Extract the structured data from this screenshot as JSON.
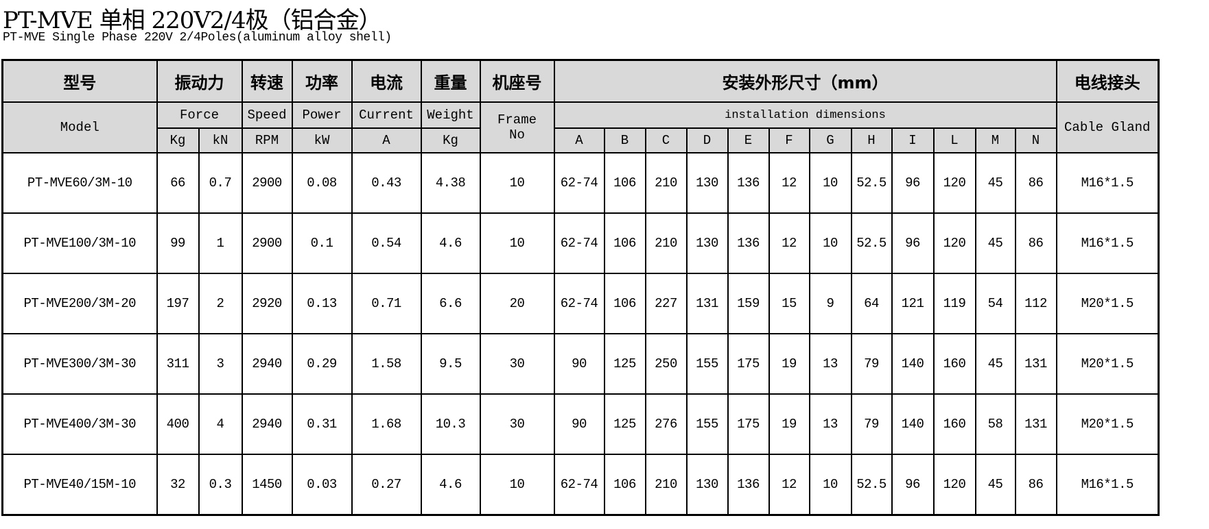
{
  "title": "PT-MVE 单相 220V2/4极（铝合金）",
  "subtitle": "PT-MVE Single Phase 220V 2/4Poles(aluminum alloy shell)",
  "colors": {
    "header_bg": "#d9d9d9",
    "border": "#000000"
  },
  "header": {
    "zh": {
      "model": "型号",
      "force": "振动力",
      "speed": "转速",
      "power": "功率",
      "current": "电流",
      "weight": "重量",
      "frame": "机座号",
      "dims": "安装外形尺寸（mm）",
      "gland": "电线接头"
    },
    "en": {
      "model": "Model",
      "force": "Force",
      "speed": "Speed",
      "power": "Power",
      "current": "Current",
      "weight": "Weight",
      "frame": "Frame No",
      "dims": "installation dimensions",
      "gland": "Cable Gland"
    },
    "units": {
      "force_kg": "Kg",
      "force_kn": "kN",
      "speed": "RPM",
      "power": "kW",
      "current": "A",
      "weight": "Kg"
    },
    "dim_letters": [
      "A",
      "B",
      "C",
      "D",
      "E",
      "F",
      "G",
      "H",
      "I",
      "L",
      "M",
      "N"
    ]
  },
  "rows": [
    {
      "model": "PT-MVE60/3M-10",
      "kg": "66",
      "kn": "0.7",
      "rpm": "2900",
      "kw": "0.08",
      "a": "0.43",
      "weight": "4.38",
      "frame": "10",
      "dims": [
        "62-74",
        "106",
        "210",
        "130",
        "136",
        "12",
        "10",
        "52.5",
        "96",
        "120",
        "45",
        "86"
      ],
      "gland": "M16*1.5"
    },
    {
      "model": "PT-MVE100/3M-10",
      "kg": "99",
      "kn": "1",
      "rpm": "2900",
      "kw": "0.1",
      "a": "0.54",
      "weight": "4.6",
      "frame": "10",
      "dims": [
        "62-74",
        "106",
        "210",
        "130",
        "136",
        "12",
        "10",
        "52.5",
        "96",
        "120",
        "45",
        "86"
      ],
      "gland": "M16*1.5"
    },
    {
      "model": "PT-MVE200/3M-20",
      "kg": "197",
      "kn": "2",
      "rpm": "2920",
      "kw": "0.13",
      "a": "0.71",
      "weight": "6.6",
      "frame": "20",
      "dims": [
        "62-74",
        "106",
        "227",
        "131",
        "159",
        "15",
        "9",
        "64",
        "121",
        "119",
        "54",
        "112"
      ],
      "gland": "M20*1.5"
    },
    {
      "model": "PT-MVE300/3M-30",
      "kg": "311",
      "kn": "3",
      "rpm": "2940",
      "kw": "0.29",
      "a": "1.58",
      "weight": "9.5",
      "frame": "30",
      "dims": [
        "90",
        "125",
        "250",
        "155",
        "175",
        "19",
        "13",
        "79",
        "140",
        "160",
        "45",
        "131"
      ],
      "gland": "M20*1.5"
    },
    {
      "model": "PT-MVE400/3M-30",
      "kg": "400",
      "kn": "4",
      "rpm": "2940",
      "kw": "0.31",
      "a": "1.68",
      "weight": "10.3",
      "frame": "30",
      "dims": [
        "90",
        "125",
        "276",
        "155",
        "175",
        "19",
        "13",
        "79",
        "140",
        "160",
        "58",
        "131"
      ],
      "gland": "M20*1.5"
    },
    {
      "model": "PT-MVE40/15M-10",
      "kg": "32",
      "kn": "0.3",
      "rpm": "1450",
      "kw": "0.03",
      "a": "0.27",
      "weight": "4.6",
      "frame": "10",
      "dims": [
        "62-74",
        "106",
        "210",
        "130",
        "136",
        "12",
        "10",
        "52.5",
        "96",
        "120",
        "45",
        "86"
      ],
      "gland": "M16*1.5"
    }
  ]
}
